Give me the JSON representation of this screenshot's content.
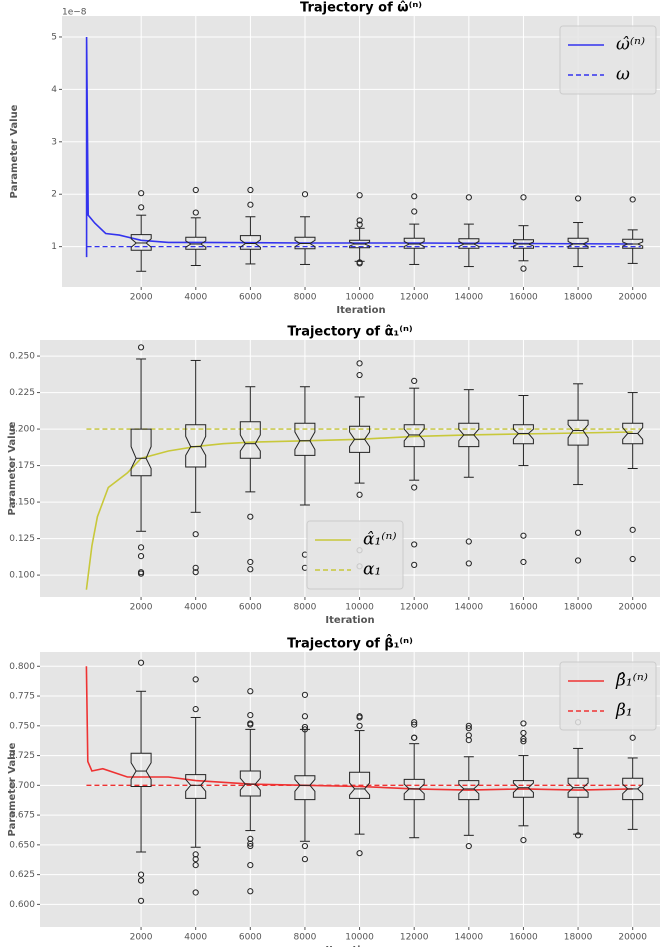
{
  "chart_data": [
    {
      "type": "box-trajectory",
      "title": "Trajectory of ω̂⁽ⁿ⁾",
      "x_label": "Iteration",
      "y_label": "Parameter Value",
      "offset_text": "1e−8",
      "xlim": [
        -900,
        21000
      ],
      "ylim": [
        0.23,
        5.4
      ],
      "xticks": [
        2000,
        4000,
        6000,
        8000,
        10000,
        12000,
        14000,
        16000,
        18000,
        20000
      ],
      "yticks": [
        1,
        2,
        3,
        4,
        5
      ],
      "grid": true,
      "legend_loc": "upper right",
      "series": [
        {
          "name": "ω̂⁽ⁿ⁾",
          "color": "#3333ee",
          "x": [
            0,
            0,
            60,
            300,
            700,
            1200,
            2000,
            3000,
            4000,
            8000,
            12000,
            16000,
            20000
          ],
          "values": [
            0.8,
            5.0,
            1.6,
            1.45,
            1.25,
            1.22,
            1.12,
            1.08,
            1.08,
            1.07,
            1.07,
            1.06,
            1.05
          ]
        }
      ],
      "reference": {
        "name": "ω",
        "color": "#3333ee",
        "value": 1
      },
      "boxes": [
        {
          "x": 2000,
          "whisker_low": 0.53,
          "q1": 0.93,
          "notch_low": 0.99,
          "median": 1.07,
          "notch_high": 1.15,
          "q3": 1.23,
          "whisker_high": 1.6,
          "outliers": [
            1.75,
            2.02
          ]
        },
        {
          "x": 4000,
          "whisker_low": 0.64,
          "q1": 0.95,
          "notch_low": 0.99,
          "median": 1.05,
          "notch_high": 1.11,
          "q3": 1.18,
          "whisker_high": 1.55,
          "outliers": [
            1.65,
            2.08
          ]
        },
        {
          "x": 6000,
          "whisker_low": 0.67,
          "q1": 0.95,
          "notch_low": 0.99,
          "median": 1.06,
          "notch_high": 1.13,
          "q3": 1.21,
          "whisker_high": 1.57,
          "outliers": [
            1.8,
            2.08
          ]
        },
        {
          "x": 8000,
          "whisker_low": 0.66,
          "q1": 0.96,
          "notch_low": 1.0,
          "median": 1.06,
          "notch_high": 1.12,
          "q3": 1.18,
          "whisker_high": 1.57,
          "outliers": [
            2.0
          ]
        },
        {
          "x": 10000,
          "whisker_low": 0.72,
          "q1": 0.98,
          "notch_low": 1.01,
          "median": 1.05,
          "notch_high": 1.09,
          "q3": 1.12,
          "whisker_high": 1.35,
          "outliers": [
            0.68,
            0.7,
            1.42,
            1.5,
            1.98
          ]
        },
        {
          "x": 12000,
          "whisker_low": 0.66,
          "q1": 0.97,
          "notch_low": 1.0,
          "median": 1.05,
          "notch_high": 1.1,
          "q3": 1.16,
          "whisker_high": 1.43,
          "outliers": [
            1.67,
            1.96
          ]
        },
        {
          "x": 14000,
          "whisker_low": 0.62,
          "q1": 0.97,
          "notch_low": 1.0,
          "median": 1.05,
          "notch_high": 1.1,
          "q3": 1.15,
          "whisker_high": 1.43,
          "outliers": [
            1.94
          ]
        },
        {
          "x": 16000,
          "whisker_low": 0.73,
          "q1": 0.97,
          "notch_low": 1.01,
          "median": 1.05,
          "notch_high": 1.09,
          "q3": 1.13,
          "whisker_high": 1.4,
          "outliers": [
            0.58,
            1.94
          ]
        },
        {
          "x": 18000,
          "whisker_low": 0.62,
          "q1": 0.97,
          "notch_low": 1.0,
          "median": 1.05,
          "notch_high": 1.1,
          "q3": 1.16,
          "whisker_high": 1.46,
          "outliers": [
            1.92
          ]
        },
        {
          "x": 20000,
          "whisker_low": 0.68,
          "q1": 0.97,
          "notch_low": 1.01,
          "median": 1.05,
          "notch_high": 1.09,
          "q3": 1.14,
          "whisker_high": 1.32,
          "outliers": [
            1.9
          ]
        }
      ]
    },
    {
      "type": "box-trajectory",
      "title": "Trajectory of α̂₁⁽ⁿ⁾",
      "x_label": "Iteration",
      "y_label": "Parameter Value",
      "xlim": [
        -1700,
        21000
      ],
      "ylim": [
        0.085,
        0.261
      ],
      "xticks": [
        2000,
        4000,
        6000,
        8000,
        10000,
        12000,
        14000,
        16000,
        18000,
        20000
      ],
      "yticks": [
        {
          "value": 0.1,
          "label": "0.100"
        },
        {
          "value": 0.125,
          "label": "0.125"
        },
        {
          "value": 0.15,
          "label": "0.150"
        },
        {
          "value": 0.175,
          "label": "0.175"
        },
        {
          "value": 0.2,
          "label": "0.200"
        },
        {
          "value": 0.225,
          "label": "0.225"
        },
        {
          "value": 0.25,
          "label": "0.250"
        }
      ],
      "grid": true,
      "legend_loc": "lower center",
      "series": [
        {
          "name": "α̂₁⁽ⁿ⁾",
          "color": "#c8c83a",
          "x": [
            0,
            200,
            400,
            800,
            1500,
            2000,
            3000,
            4000,
            5000,
            6000,
            8000,
            10000,
            12000,
            14000,
            17000,
            20000
          ],
          "values": [
            0.09,
            0.12,
            0.14,
            0.16,
            0.17,
            0.18,
            0.185,
            0.188,
            0.19,
            0.191,
            0.192,
            0.193,
            0.195,
            0.196,
            0.197,
            0.198
          ]
        }
      ],
      "reference": {
        "name": "α₁",
        "color": "#c8c83a",
        "value": 0.2
      },
      "boxes": [
        {
          "x": 2000,
          "whisker_low": 0.13,
          "q1": 0.168,
          "notch_low": 0.173,
          "median": 0.18,
          "notch_high": 0.188,
          "q3": 0.2,
          "whisker_high": 0.248,
          "outliers": [
            0.256,
            0.119,
            0.113,
            0.102,
            0.101
          ]
        },
        {
          "x": 4000,
          "whisker_low": 0.143,
          "q1": 0.174,
          "notch_low": 0.182,
          "median": 0.188,
          "notch_high": 0.195,
          "q3": 0.203,
          "whisker_high": 0.247,
          "outliers": [
            0.128,
            0.105,
            0.102
          ]
        },
        {
          "x": 6000,
          "whisker_low": 0.157,
          "q1": 0.18,
          "notch_low": 0.185,
          "median": 0.19,
          "notch_high": 0.196,
          "q3": 0.205,
          "whisker_high": 0.229,
          "outliers": [
            0.14,
            0.109,
            0.104
          ]
        },
        {
          "x": 8000,
          "whisker_low": 0.148,
          "q1": 0.182,
          "notch_low": 0.186,
          "median": 0.192,
          "notch_high": 0.198,
          "q3": 0.204,
          "whisker_high": 0.229,
          "outliers": [
            0.114,
            0.105
          ]
        },
        {
          "x": 10000,
          "whisker_low": 0.163,
          "q1": 0.184,
          "notch_low": 0.188,
          "median": 0.193,
          "notch_high": 0.198,
          "q3": 0.202,
          "whisker_high": 0.222,
          "outliers": [
            0.245,
            0.237,
            0.155,
            0.117,
            0.106
          ]
        },
        {
          "x": 12000,
          "whisker_low": 0.165,
          "q1": 0.188,
          "notch_low": 0.192,
          "median": 0.196,
          "notch_high": 0.2,
          "q3": 0.203,
          "whisker_high": 0.228,
          "outliers": [
            0.233,
            0.16,
            0.121,
            0.107
          ]
        },
        {
          "x": 14000,
          "whisker_low": 0.167,
          "q1": 0.188,
          "notch_low": 0.192,
          "median": 0.196,
          "notch_high": 0.2,
          "q3": 0.204,
          "whisker_high": 0.227,
          "outliers": [
            0.123,
            0.108
          ]
        },
        {
          "x": 16000,
          "whisker_low": 0.175,
          "q1": 0.19,
          "notch_low": 0.193,
          "median": 0.197,
          "notch_high": 0.2,
          "q3": 0.203,
          "whisker_high": 0.223,
          "outliers": [
            0.127,
            0.109
          ]
        },
        {
          "x": 18000,
          "whisker_low": 0.162,
          "q1": 0.189,
          "notch_low": 0.194,
          "median": 0.199,
          "notch_high": 0.203,
          "q3": 0.206,
          "whisker_high": 0.231,
          "outliers": [
            0.129,
            0.11
          ]
        },
        {
          "x": 20000,
          "whisker_low": 0.173,
          "q1": 0.19,
          "notch_low": 0.193,
          "median": 0.197,
          "notch_high": 0.201,
          "q3": 0.204,
          "whisker_high": 0.225,
          "outliers": [
            0.131,
            0.111
          ]
        }
      ]
    },
    {
      "type": "box-trajectory",
      "title": "Trajectory of β̂₁⁽ⁿ⁾",
      "x_label": "Iteration",
      "y_label": "Parameter Value",
      "xlim": [
        -1700,
        21000
      ],
      "ylim": [
        0.581,
        0.812
      ],
      "xticks": [
        2000,
        4000,
        6000,
        8000,
        10000,
        12000,
        14000,
        16000,
        18000,
        20000
      ],
      "yticks": [
        {
          "value": 0.6,
          "label": "0.600"
        },
        {
          "value": 0.625,
          "label": "0.625"
        },
        {
          "value": 0.65,
          "label": "0.650"
        },
        {
          "value": 0.675,
          "label": "0.675"
        },
        {
          "value": 0.7,
          "label": "0.700"
        },
        {
          "value": 0.725,
          "label": "0.725"
        },
        {
          "value": 0.75,
          "label": "0.750"
        },
        {
          "value": 0.775,
          "label": "0.775"
        },
        {
          "value": 0.8,
          "label": "0.800"
        }
      ],
      "grid": true,
      "legend_loc": "upper right",
      "series": [
        {
          "name": "β̂₁⁽ⁿ⁾",
          "color": "#ee3333",
          "x": [
            0,
            50,
            200,
            600,
            1500,
            3000,
            4000,
            6000,
            8000,
            10000,
            12000,
            14000,
            16000,
            18000,
            20000
          ],
          "values": [
            0.8,
            0.72,
            0.712,
            0.714,
            0.707,
            0.707,
            0.704,
            0.701,
            0.7,
            0.699,
            0.697,
            0.696,
            0.697,
            0.696,
            0.697
          ]
        }
      ],
      "reference": {
        "name": "β₁",
        "color": "#ee3333",
        "value": 0.7
      },
      "boxes": [
        {
          "x": 2000,
          "whisker_low": 0.644,
          "q1": 0.699,
          "notch_low": 0.705,
          "median": 0.712,
          "notch_high": 0.719,
          "q3": 0.727,
          "whisker_high": 0.779,
          "outliers": [
            0.803,
            0.625,
            0.62,
            0.603
          ]
        },
        {
          "x": 4000,
          "whisker_low": 0.648,
          "q1": 0.689,
          "notch_low": 0.695,
          "median": 0.7,
          "notch_high": 0.705,
          "q3": 0.709,
          "whisker_high": 0.757,
          "outliers": [
            0.789,
            0.764,
            0.642,
            0.638,
            0.633,
            0.61
          ]
        },
        {
          "x": 6000,
          "whisker_low": 0.662,
          "q1": 0.691,
          "notch_low": 0.696,
          "median": 0.701,
          "notch_high": 0.706,
          "q3": 0.712,
          "whisker_high": 0.747,
          "outliers": [
            0.779,
            0.759,
            0.752,
            0.751,
            0.655,
            0.651,
            0.649,
            0.633,
            0.611
          ]
        },
        {
          "x": 8000,
          "whisker_low": 0.653,
          "q1": 0.688,
          "notch_low": 0.695,
          "median": 0.7,
          "notch_high": 0.705,
          "q3": 0.708,
          "whisker_high": 0.747,
          "outliers": [
            0.776,
            0.758,
            0.749,
            0.747,
            0.649,
            0.638
          ]
        },
        {
          "x": 10000,
          "whisker_low": 0.659,
          "q1": 0.689,
          "notch_low": 0.692,
          "median": 0.697,
          "notch_high": 0.702,
          "q3": 0.711,
          "whisker_high": 0.746,
          "outliers": [
            0.758,
            0.757,
            0.75,
            0.643
          ]
        },
        {
          "x": 12000,
          "whisker_low": 0.656,
          "q1": 0.688,
          "notch_low": 0.693,
          "median": 0.697,
          "notch_high": 0.701,
          "q3": 0.705,
          "whisker_high": 0.735,
          "outliers": [
            0.753,
            0.751,
            0.74,
            0.74
          ]
        },
        {
          "x": 14000,
          "whisker_low": 0.658,
          "q1": 0.688,
          "notch_low": 0.693,
          "median": 0.697,
          "notch_high": 0.701,
          "q3": 0.704,
          "whisker_high": 0.724,
          "outliers": [
            0.75,
            0.748,
            0.742,
            0.738,
            0.649
          ]
        },
        {
          "x": 16000,
          "whisker_low": 0.666,
          "q1": 0.69,
          "notch_low": 0.694,
          "median": 0.698,
          "notch_high": 0.702,
          "q3": 0.704,
          "whisker_high": 0.725,
          "outliers": [
            0.752,
            0.744,
            0.739,
            0.737,
            0.654
          ]
        },
        {
          "x": 18000,
          "whisker_low": 0.659,
          "q1": 0.69,
          "notch_low": 0.694,
          "median": 0.698,
          "notch_high": 0.702,
          "q3": 0.706,
          "whisker_high": 0.731,
          "outliers": [
            0.753,
            0.658
          ]
        },
        {
          "x": 20000,
          "whisker_low": 0.663,
          "q1": 0.688,
          "notch_low": 0.693,
          "median": 0.697,
          "notch_high": 0.701,
          "q3": 0.706,
          "whisker_high": 0.723,
          "outliers": [
            0.74
          ]
        }
      ]
    }
  ]
}
